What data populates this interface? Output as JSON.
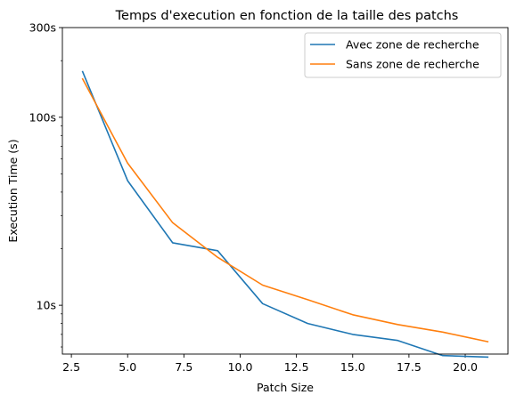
{
  "chart_data": {
    "type": "line",
    "title": "Temps d'execution en fonction de la taille des patchs",
    "xlabel": "Patch Size",
    "ylabel": "Execution Time (s)",
    "xlim": [
      2.1,
      21.9
    ],
    "ylim": [
      5.5,
      300
    ],
    "yscale": "log",
    "x_ticks": [
      2.5,
      5.0,
      7.5,
      10.0,
      12.5,
      15.0,
      17.5,
      20.0
    ],
    "x_tick_labels": [
      "2.5",
      "5.0",
      "7.5",
      "10.0",
      "12.5",
      "15.0",
      "17.5",
      "20.0"
    ],
    "y_ticks": [
      10,
      100,
      300
    ],
    "y_tick_labels": [
      "10s",
      "100s",
      "300s"
    ],
    "y_minor_ticks": [
      6,
      7,
      8,
      9,
      20,
      30,
      40,
      50,
      60,
      70,
      80,
      90,
      200
    ],
    "grid": false,
    "legend_position": "top-right",
    "x": [
      3,
      5,
      7,
      9,
      11,
      13,
      15,
      17,
      19,
      21
    ],
    "series": [
      {
        "name": "Avec zone de recherche",
        "color": "#1f77b4",
        "values": [
          175,
          46,
          21.5,
          19.5,
          10.2,
          8.0,
          7.0,
          6.5,
          5.4,
          5.3
        ]
      },
      {
        "name": "Sans zone de recherche",
        "color": "#ff7f0e",
        "values": [
          160,
          57,
          27.5,
          18.0,
          12.8,
          10.7,
          8.9,
          7.9,
          7.2,
          6.4
        ]
      }
    ]
  }
}
